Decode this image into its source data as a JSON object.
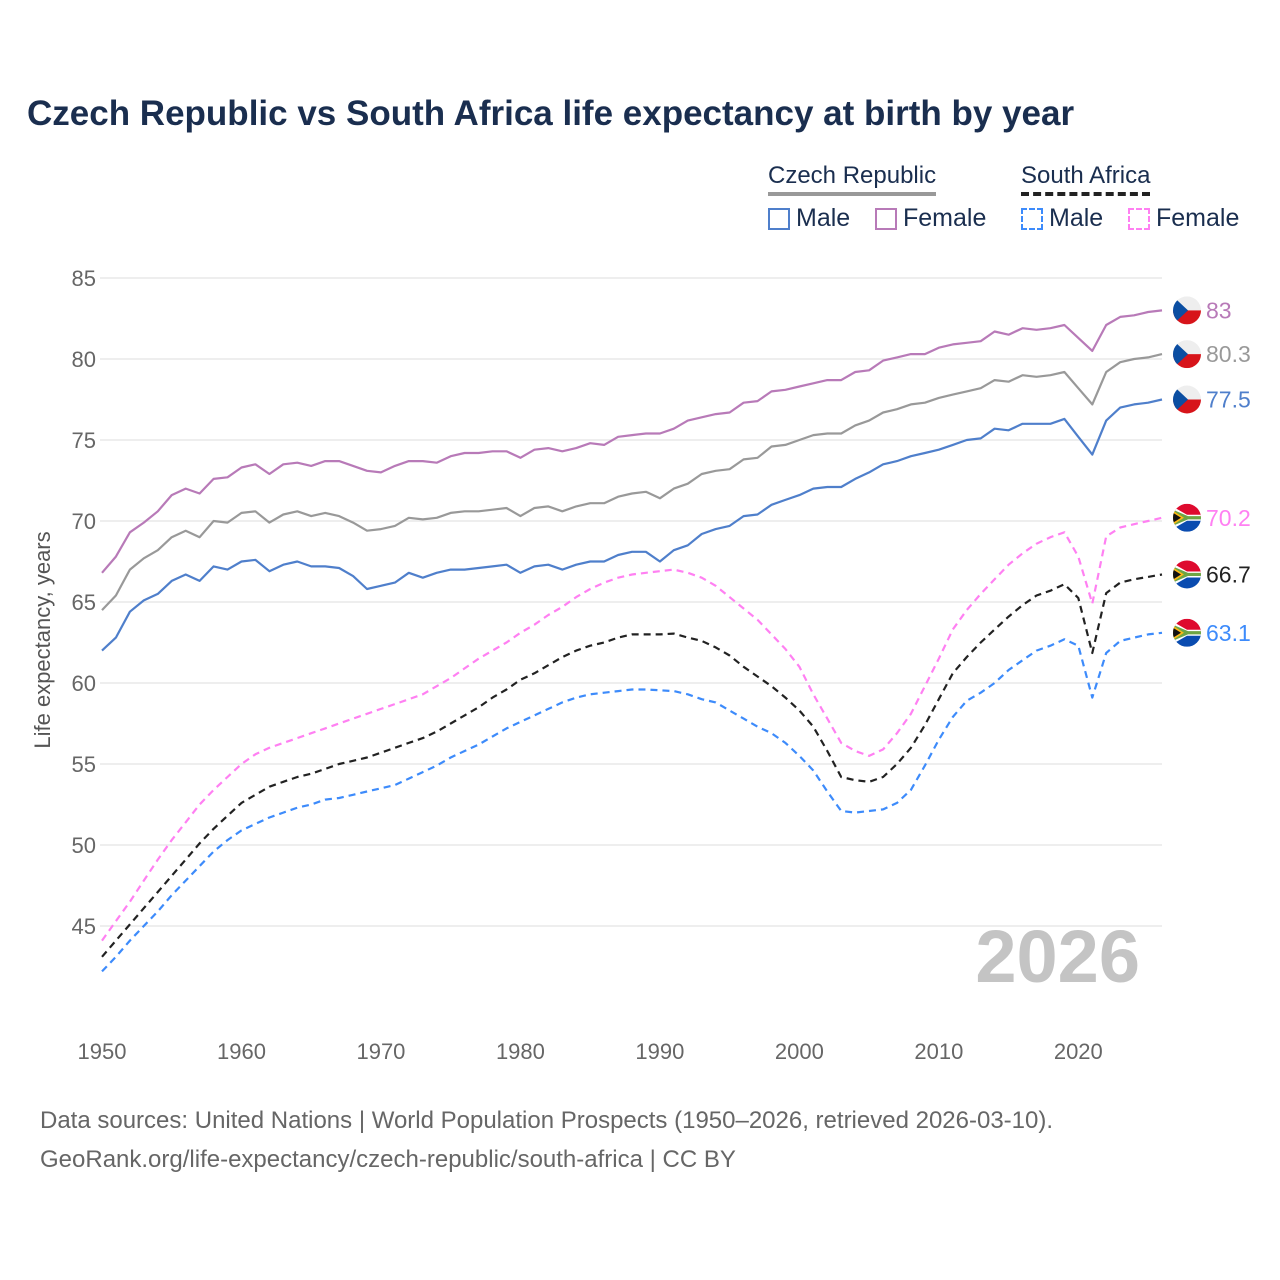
{
  "title": "Czech Republic vs South Africa life expectancy at birth by year",
  "legend": {
    "groups": [
      {
        "country": "Czech Republic",
        "items": [
          "Male",
          "Female"
        ]
      },
      {
        "country": "South Africa",
        "items": [
          "Male",
          "Female"
        ]
      }
    ]
  },
  "watermark_year": "2026",
  "footer": {
    "line1": "Data sources: United Nations | World Population Prospects (1950–2026, retrieved 2026-03-10).",
    "line2": "GeoRank.org/life-expectancy/czech-republic/south-africa | CC BY"
  },
  "colors": {
    "cz_male": "#4f7fcb",
    "cz_female": "#b87ab8",
    "cz_total": "#999999",
    "za_male": "#3d8bfb",
    "za_female": "#ff80f2",
    "za_total": "#222222",
    "title": "#1a2e4f"
  },
  "chart_data": {
    "type": "line",
    "title": "Czech Republic vs South Africa life expectancy at birth by year",
    "xlabel": "",
    "ylabel": "Life expectancy, years",
    "xlim": [
      1950,
      2026
    ],
    "ylim": [
      41.5,
      85
    ],
    "x_ticks": [
      1950,
      1960,
      1970,
      1980,
      1990,
      2000,
      2010,
      2020
    ],
    "y_ticks": [
      45,
      50,
      55,
      60,
      65,
      70,
      75,
      80,
      85
    ],
    "grid": true,
    "legend_position": "top-right",
    "x_start": 1950,
    "series": [
      {
        "id": "cz_female",
        "name": "Czech Republic Female",
        "dashed": false,
        "end_label": "83",
        "flag": "cz",
        "values": [
          66.8,
          67.8,
          69.3,
          69.9,
          70.6,
          71.6,
          72.0,
          71.7,
          72.6,
          72.7,
          73.3,
          73.5,
          72.9,
          73.5,
          73.6,
          73.4,
          73.7,
          73.7,
          73.4,
          73.1,
          73.0,
          73.4,
          73.7,
          73.7,
          73.6,
          74.0,
          74.2,
          74.2,
          74.3,
          74.3,
          73.9,
          74.4,
          74.5,
          74.3,
          74.5,
          74.8,
          74.7,
          75.2,
          75.3,
          75.4,
          75.4,
          75.7,
          76.2,
          76.4,
          76.6,
          76.7,
          77.3,
          77.4,
          78.0,
          78.1,
          78.3,
          78.5,
          78.7,
          78.7,
          79.2,
          79.3,
          79.9,
          80.1,
          80.3,
          80.3,
          80.7,
          80.9,
          81.0,
          81.1,
          81.7,
          81.5,
          81.9,
          81.8,
          81.9,
          82.1,
          81.3,
          80.5,
          82.1,
          82.6,
          82.7,
          82.9,
          83.0
        ]
      },
      {
        "id": "cz_total",
        "name": "Czech Republic",
        "dashed": false,
        "end_label": "80.3",
        "flag": "cz",
        "values": [
          64.5,
          65.4,
          67.0,
          67.7,
          68.2,
          69.0,
          69.4,
          69.0,
          70.0,
          69.9,
          70.5,
          70.6,
          69.9,
          70.4,
          70.6,
          70.3,
          70.5,
          70.3,
          69.9,
          69.4,
          69.5,
          69.7,
          70.2,
          70.1,
          70.2,
          70.5,
          70.6,
          70.6,
          70.7,
          70.8,
          70.3,
          70.8,
          70.9,
          70.6,
          70.9,
          71.1,
          71.1,
          71.5,
          71.7,
          71.8,
          71.4,
          72.0,
          72.3,
          72.9,
          73.1,
          73.2,
          73.8,
          73.9,
          74.6,
          74.7,
          75.0,
          75.3,
          75.4,
          75.4,
          75.9,
          76.2,
          76.7,
          76.9,
          77.2,
          77.3,
          77.6,
          77.8,
          78.0,
          78.2,
          78.7,
          78.6,
          79.0,
          78.9,
          79.0,
          79.2,
          78.2,
          77.2,
          79.2,
          79.8,
          80.0,
          80.1,
          80.3
        ]
      },
      {
        "id": "cz_male",
        "name": "Czech Republic Male",
        "dashed": false,
        "end_label": "77.5",
        "flag": "cz",
        "values": [
          62.0,
          62.8,
          64.4,
          65.1,
          65.5,
          66.3,
          66.7,
          66.3,
          67.2,
          67.0,
          67.5,
          67.6,
          66.9,
          67.3,
          67.5,
          67.2,
          67.2,
          67.1,
          66.6,
          65.8,
          66.0,
          66.2,
          66.8,
          66.5,
          66.8,
          67.0,
          67.0,
          67.1,
          67.2,
          67.3,
          66.8,
          67.2,
          67.3,
          67.0,
          67.3,
          67.5,
          67.5,
          67.9,
          68.1,
          68.1,
          67.5,
          68.2,
          68.5,
          69.2,
          69.5,
          69.7,
          70.3,
          70.4,
          71.0,
          71.3,
          71.6,
          72.0,
          72.1,
          72.1,
          72.6,
          73.0,
          73.5,
          73.7,
          74.0,
          74.2,
          74.4,
          74.7,
          75.0,
          75.1,
          75.7,
          75.6,
          76.0,
          76.0,
          76.0,
          76.3,
          75.2,
          74.1,
          76.2,
          77.0,
          77.2,
          77.3,
          77.5
        ]
      },
      {
        "id": "za_female",
        "name": "South Africa Female",
        "dashed": true,
        "end_label": "70.2",
        "flag": "za",
        "values": [
          44.1,
          45.3,
          46.5,
          47.8,
          49.1,
          50.3,
          51.4,
          52.5,
          53.4,
          54.2,
          55.0,
          55.6,
          56.0,
          56.3,
          56.6,
          56.9,
          57.2,
          57.5,
          57.8,
          58.1,
          58.4,
          58.7,
          59.0,
          59.3,
          59.8,
          60.3,
          60.9,
          61.5,
          62.0,
          62.5,
          63.1,
          63.6,
          64.2,
          64.7,
          65.3,
          65.8,
          66.2,
          66.5,
          66.7,
          66.8,
          66.9,
          67.0,
          66.8,
          66.5,
          66.0,
          65.3,
          64.6,
          63.9,
          63.0,
          62.1,
          61.0,
          59.3,
          57.8,
          56.3,
          55.8,
          55.5,
          55.9,
          56.9,
          58.1,
          59.8,
          61.5,
          63.3,
          64.5,
          65.5,
          66.4,
          67.3,
          68.0,
          68.6,
          69.0,
          69.3,
          67.8,
          64.9,
          69.05,
          69.6,
          69.8,
          70.0,
          70.2
        ]
      },
      {
        "id": "za_total",
        "name": "South Africa",
        "dashed": true,
        "end_label": "66.7",
        "flag": "za",
        "values": [
          43.1,
          44.1,
          45.1,
          46.1,
          47.1,
          48.1,
          49.1,
          50.1,
          51.0,
          51.8,
          52.6,
          53.1,
          53.6,
          53.9,
          54.2,
          54.4,
          54.7,
          55.0,
          55.2,
          55.4,
          55.7,
          56.0,
          56.3,
          56.6,
          57.0,
          57.5,
          58.0,
          58.5,
          59.1,
          59.6,
          60.2,
          60.6,
          61.1,
          61.6,
          62.0,
          62.3,
          62.5,
          62.8,
          63.0,
          63.0,
          63.0,
          63.05,
          62.8,
          62.6,
          62.2,
          61.7,
          61.0,
          60.4,
          59.8,
          59.1,
          58.3,
          57.3,
          55.8,
          54.2,
          54.0,
          53.9,
          54.2,
          55.0,
          56.0,
          57.4,
          59.0,
          60.6,
          61.6,
          62.5,
          63.3,
          64.1,
          64.8,
          65.4,
          65.7,
          66.1,
          65.25,
          61.85,
          65.55,
          66.2,
          66.4,
          66.55,
          66.7
        ]
      },
      {
        "id": "za_male",
        "name": "South Africa Male",
        "dashed": true,
        "end_label": "63.1",
        "flag": "za",
        "values": [
          42.2,
          43.1,
          44.1,
          45.0,
          45.9,
          46.9,
          47.8,
          48.7,
          49.6,
          50.3,
          50.9,
          51.3,
          51.7,
          52.0,
          52.3,
          52.5,
          52.8,
          52.9,
          53.1,
          53.3,
          53.5,
          53.7,
          54.1,
          54.5,
          54.9,
          55.4,
          55.8,
          56.2,
          56.7,
          57.2,
          57.6,
          58.0,
          58.4,
          58.8,
          59.1,
          59.3,
          59.4,
          59.5,
          59.6,
          59.6,
          59.55,
          59.5,
          59.3,
          59.0,
          58.8,
          58.3,
          57.8,
          57.3,
          56.9,
          56.3,
          55.5,
          54.6,
          53.3,
          52.1,
          52.0,
          52.1,
          52.2,
          52.6,
          53.4,
          54.9,
          56.5,
          57.9,
          58.9,
          59.4,
          60.0,
          60.8,
          61.4,
          62.0,
          62.3,
          62.7,
          62.3,
          59.1,
          61.85,
          62.6,
          62.8,
          63.0,
          63.1
        ]
      }
    ]
  }
}
